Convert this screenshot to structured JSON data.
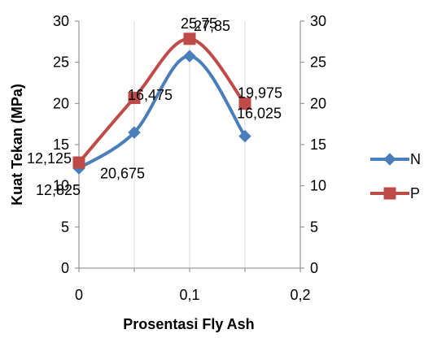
{
  "chart_data": {
    "type": "line",
    "xlabel": "Prosentasi Fly Ash",
    "ylabel": "Kuat Tekan (MPa)",
    "xlim": [
      0,
      0.2
    ],
    "ylim": [
      0,
      30
    ],
    "x_ticks": [
      "0",
      "0,05",
      "0,1",
      "0,15",
      "0,2"
    ],
    "x_tick_labels_shown": [
      "0",
      "0,1",
      "0,2"
    ],
    "y_ticks": [
      "0",
      "5",
      "10",
      "15",
      "20",
      "25",
      "30"
    ],
    "y2_ticks": [
      "0",
      "5",
      "10",
      "15",
      "20",
      "25",
      "30"
    ],
    "grid": "vertical",
    "legend_position": "right",
    "smooth": true,
    "x": [
      0,
      0.05,
      0.1,
      0.15
    ],
    "series": [
      {
        "name": "N",
        "marker": "diamond",
        "color": "#4a7ebb",
        "values": [
          12.125,
          16.475,
          25.75,
          16.025
        ],
        "labels": [
          "12,125",
          "16,475",
          "25,75",
          "16,025"
        ]
      },
      {
        "name": "P",
        "marker": "square",
        "color": "#be4b48",
        "values": [
          12.825,
          20.675,
          27.85,
          19.975
        ],
        "labels": [
          "12,825",
          "20,675",
          "27,85",
          "19,975"
        ]
      }
    ]
  }
}
